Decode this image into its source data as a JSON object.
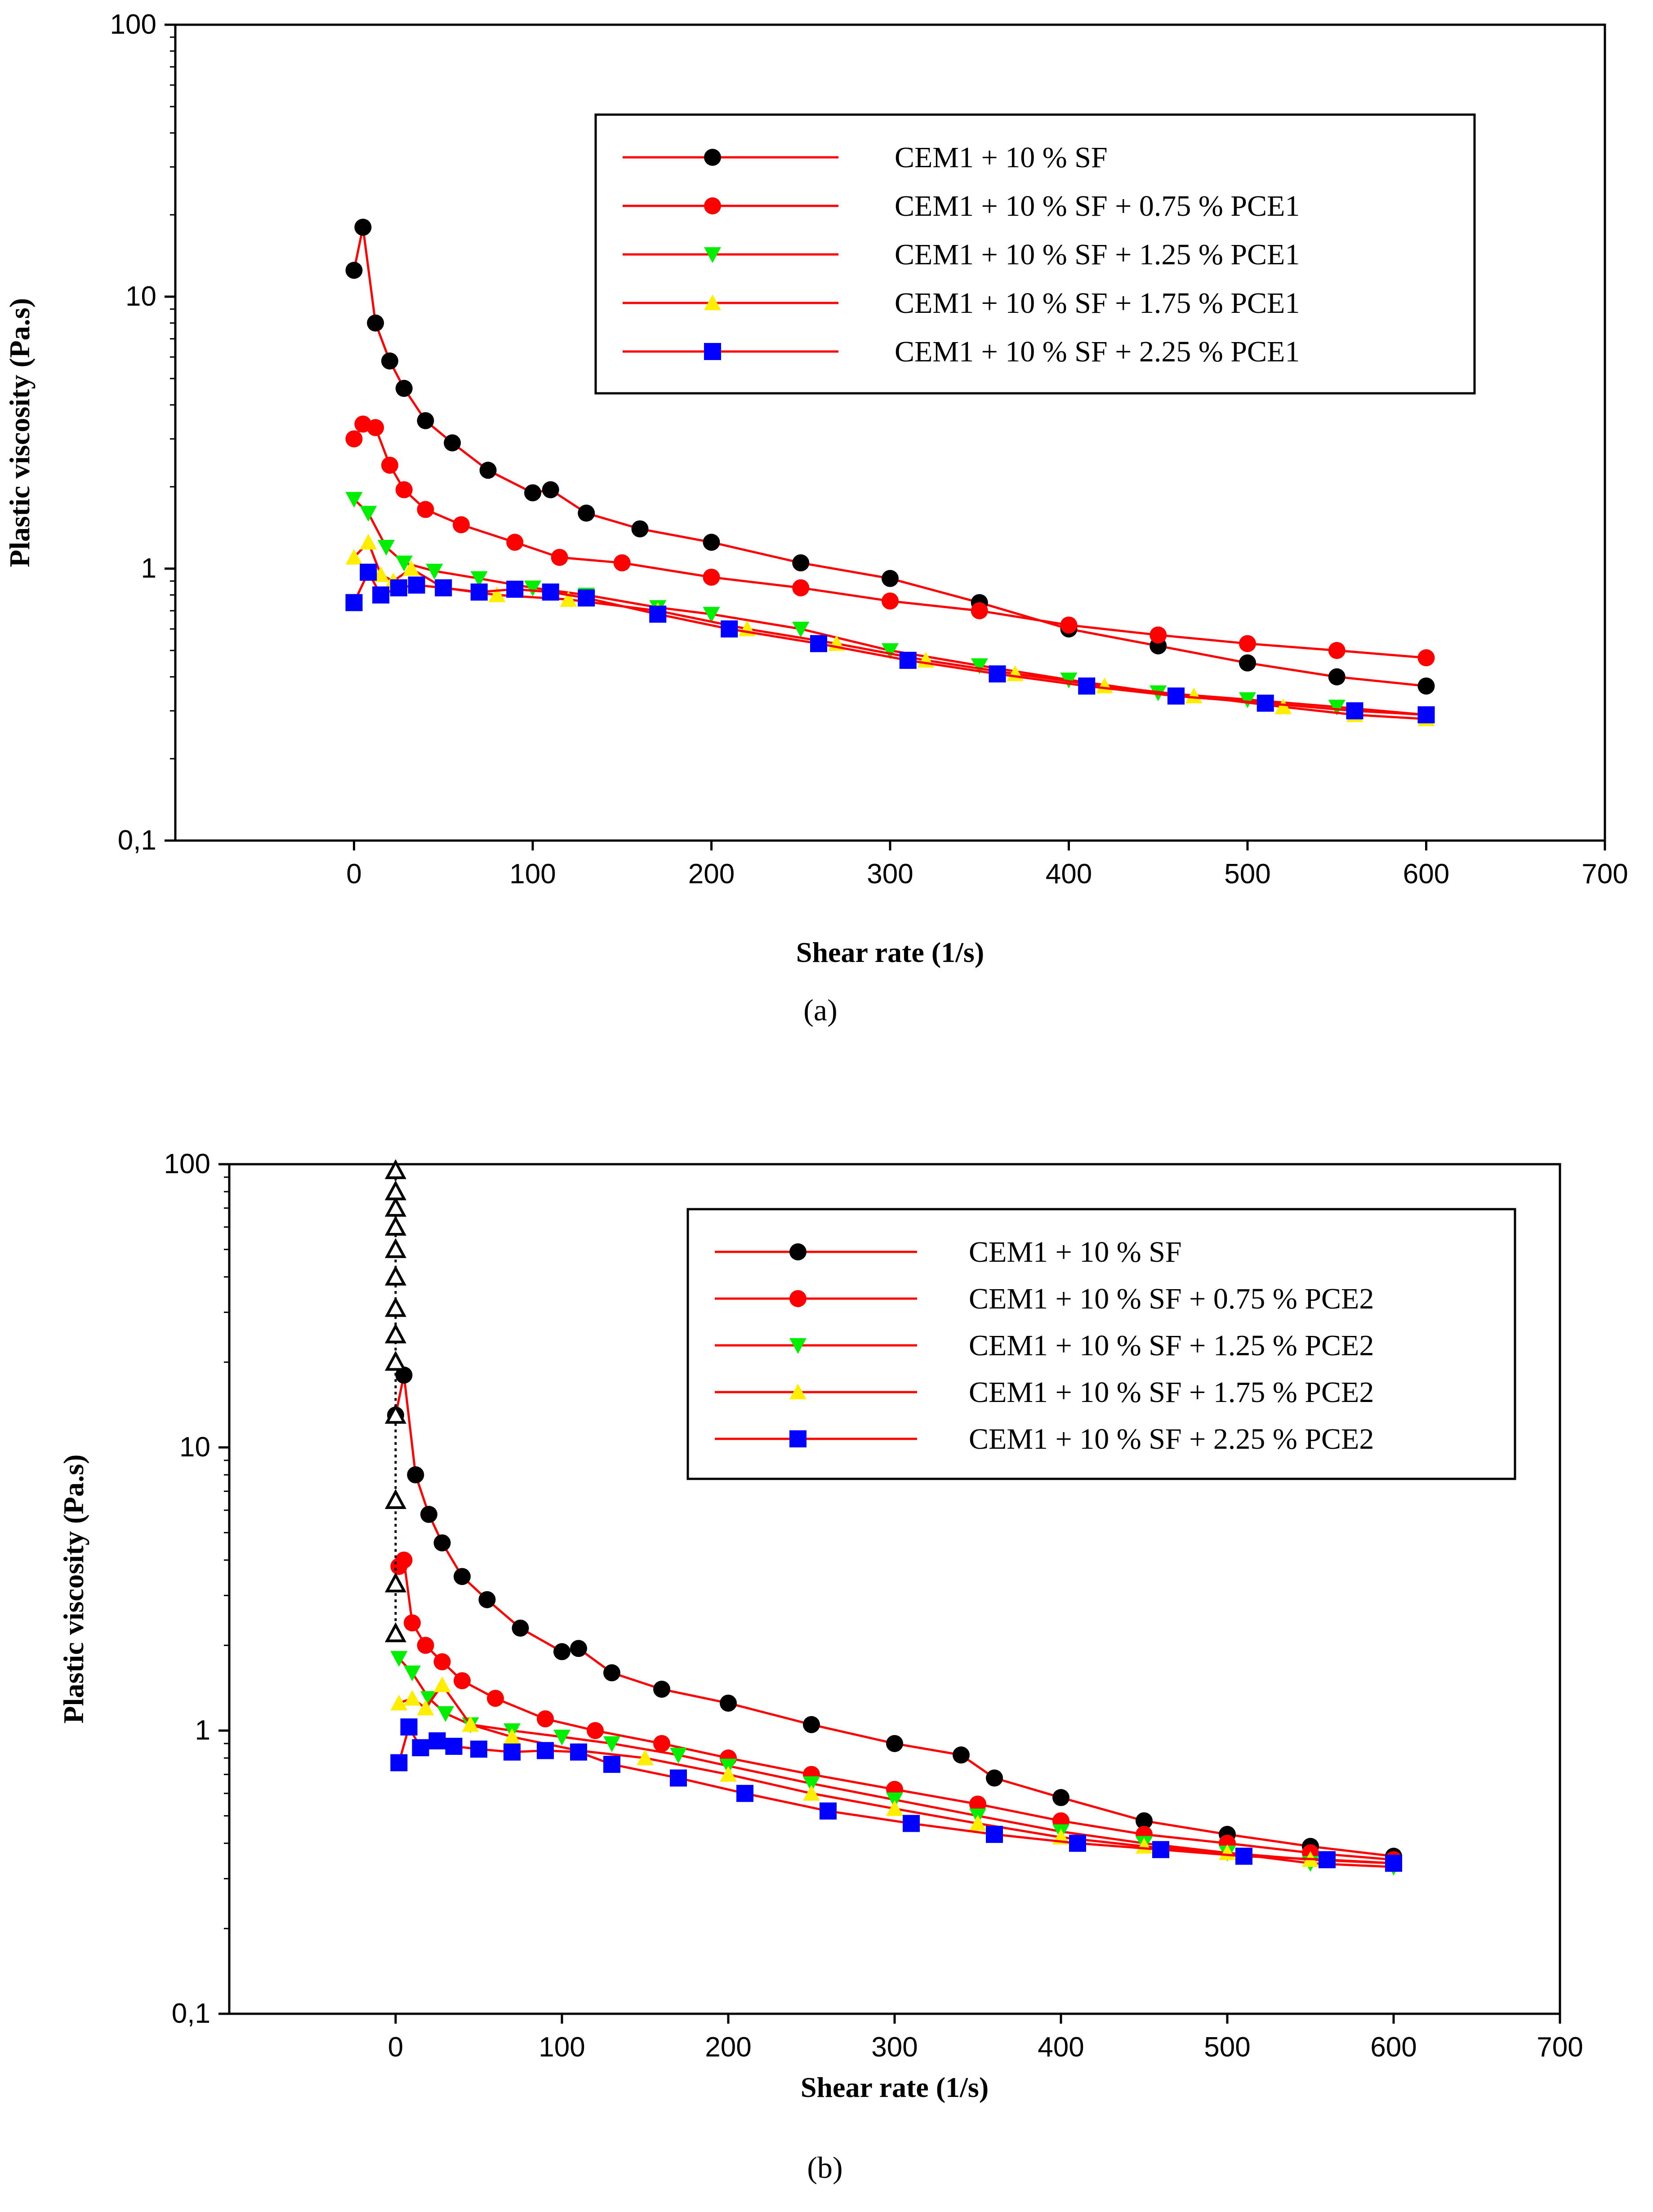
{
  "chart_data": [
    {
      "type": "line",
      "panel_label": "(a)",
      "xlabel": "Shear rate (1/s)",
      "ylabel": "Plastic viscosity (Pa.s)",
      "xlim": [
        -100,
        700
      ],
      "ylim": [
        0.1,
        100
      ],
      "yscale": "log",
      "xticks": [
        0,
        100,
        200,
        300,
        400,
        500,
        600,
        700
      ],
      "xtick_labels": [
        "0",
        "100",
        "200",
        "300",
        "400",
        "500",
        "600",
        "700"
      ],
      "yticks": [
        0.1,
        1,
        10,
        100
      ],
      "ytick_labels": [
        "0,1",
        "1",
        "10",
        "100"
      ],
      "legend_position": "top-right",
      "series": [
        {
          "name": "CEM1 + 10 % SF",
          "color": "#000000",
          "marker": "circle",
          "x": [
            0,
            5,
            12,
            20,
            28,
            40,
            55,
            75,
            100,
            110,
            130,
            160,
            200,
            250,
            300,
            350,
            400,
            450,
            500,
            550,
            600
          ],
          "y": [
            12.5,
            18,
            8,
            5.8,
            4.6,
            3.5,
            2.9,
            2.3,
            1.9,
            1.95,
            1.6,
            1.4,
            1.25,
            1.05,
            0.92,
            0.75,
            0.6,
            0.52,
            0.45,
            0.4,
            0.37
          ]
        },
        {
          "name": "CEM1 + 10 % SF + 0.75 % PCE1",
          "color": "#ff0000",
          "marker": "circle",
          "x": [
            0,
            5,
            12,
            20,
            28,
            40,
            60,
            90,
            115,
            150,
            200,
            250,
            300,
            350,
            400,
            450,
            500,
            550,
            600
          ],
          "y": [
            3.0,
            3.4,
            3.3,
            2.4,
            1.95,
            1.65,
            1.45,
            1.25,
            1.1,
            1.05,
            0.93,
            0.85,
            0.76,
            0.7,
            0.62,
            0.57,
            0.53,
            0.5,
            0.47
          ]
        },
        {
          "name": "CEM1 + 10 % SF + 1.25 % PCE1",
          "color": "#00ee00",
          "marker": "triangle-down",
          "x": [
            0,
            8,
            18,
            28,
            45,
            70,
            100,
            130,
            170,
            200,
            250,
            300,
            350,
            400,
            450,
            500,
            550,
            600
          ],
          "y": [
            1.8,
            1.6,
            1.2,
            1.05,
            0.98,
            0.92,
            0.85,
            0.8,
            0.72,
            0.68,
            0.6,
            0.5,
            0.44,
            0.39,
            0.35,
            0.33,
            0.31,
            0.29
          ]
        },
        {
          "name": "CEM1 + 10 % SF + 1.75 % PCE1",
          "color": "#ffee00",
          "marker": "triangle-up",
          "x": [
            0,
            8,
            15,
            22,
            32,
            50,
            80,
            120,
            170,
            220,
            270,
            320,
            370,
            420,
            470,
            520,
            560,
            600
          ],
          "y": [
            1.1,
            1.25,
            0.95,
            0.9,
            1.0,
            0.85,
            0.8,
            0.77,
            0.7,
            0.6,
            0.53,
            0.46,
            0.41,
            0.37,
            0.34,
            0.31,
            0.29,
            0.28
          ]
        },
        {
          "name": "CEM1 + 10 % SF + 2.25 % PCE1",
          "color": "#0000ff",
          "marker": "square",
          "x": [
            0,
            8,
            15,
            25,
            35,
            50,
            70,
            90,
            110,
            130,
            170,
            210,
            260,
            310,
            360,
            410,
            460,
            510,
            560,
            600
          ],
          "y": [
            0.75,
            0.97,
            0.8,
            0.85,
            0.87,
            0.85,
            0.82,
            0.84,
            0.82,
            0.78,
            0.68,
            0.6,
            0.53,
            0.46,
            0.41,
            0.37,
            0.34,
            0.32,
            0.3,
            0.29
          ]
        }
      ]
    },
    {
      "type": "line",
      "panel_label": "(b)",
      "xlabel": "Shear rate (1/s)",
      "ylabel": "Plastic viscosity (Pa.s)",
      "xlim": [
        -100,
        700
      ],
      "ylim": [
        0.1,
        100
      ],
      "yscale": "log",
      "xticks": [
        0,
        100,
        200,
        300,
        400,
        500,
        600,
        700
      ],
      "xtick_labels": [
        "0",
        "100",
        "200",
        "300",
        "400",
        "500",
        "600",
        "700"
      ],
      "yticks": [
        0.1,
        1,
        10,
        100
      ],
      "ytick_labels": [
        "0,1",
        "1",
        "10",
        "100"
      ],
      "legend_position": "top-right",
      "series": [
        {
          "name": "CEM1 + 10 % SF",
          "color": "#000000",
          "marker": "circle",
          "x": [
            0,
            5,
            12,
            20,
            28,
            40,
            55,
            75,
            100,
            110,
            130,
            160,
            200,
            250,
            300,
            340,
            360,
            400,
            450,
            500,
            550,
            600
          ],
          "y": [
            13,
            18,
            8,
            5.8,
            4.6,
            3.5,
            2.9,
            2.3,
            1.9,
            1.95,
            1.6,
            1.4,
            1.25,
            1.05,
            0.9,
            0.82,
            0.68,
            0.58,
            0.48,
            0.43,
            0.39,
            0.36
          ]
        },
        {
          "name": "CEM1 + 10 % SF + 0.75 % PCE2",
          "color": "#ff0000",
          "marker": "circle",
          "x": [
            2,
            5,
            10,
            18,
            28,
            40,
            60,
            90,
            120,
            160,
            200,
            250,
            300,
            350,
            400,
            450,
            500,
            550,
            600
          ],
          "y": [
            3.8,
            4.0,
            2.4,
            2.0,
            1.75,
            1.5,
            1.3,
            1.1,
            1.0,
            0.9,
            0.8,
            0.7,
            0.62,
            0.55,
            0.48,
            0.43,
            0.4,
            0.37,
            0.35
          ]
        },
        {
          "name": "CEM1 + 10 % SF + 1.25 % PCE2",
          "color": "#00ee00",
          "marker": "triangle-down",
          "x": [
            2,
            10,
            20,
            30,
            45,
            70,
            100,
            130,
            170,
            200,
            250,
            300,
            350,
            400,
            450,
            500,
            550,
            600
          ],
          "y": [
            1.8,
            1.6,
            1.3,
            1.15,
            1.05,
            1.0,
            0.95,
            0.9,
            0.82,
            0.75,
            0.65,
            0.57,
            0.5,
            0.44,
            0.4,
            0.37,
            0.34,
            0.33
          ]
        },
        {
          "name": "CEM1 + 10 % SF + 1.75 % PCE2",
          "color": "#ffee00",
          "marker": "triangle-up",
          "x": [
            2,
            10,
            18,
            28,
            45,
            70,
            110,
            150,
            200,
            250,
            300,
            350,
            400,
            450,
            500,
            550,
            600
          ],
          "y": [
            1.25,
            1.3,
            1.2,
            1.45,
            1.05,
            0.95,
            0.85,
            0.8,
            0.7,
            0.6,
            0.53,
            0.47,
            0.42,
            0.39,
            0.37,
            0.35,
            0.34
          ]
        },
        {
          "name": "CEM1 + 10 % SF + 2.25 % PCE2",
          "color": "#0000ff",
          "marker": "square",
          "x": [
            2,
            8,
            15,
            25,
            35,
            50,
            70,
            90,
            110,
            130,
            170,
            210,
            260,
            310,
            360,
            410,
            460,
            510,
            560,
            600
          ],
          "y": [
            0.77,
            1.03,
            0.87,
            0.92,
            0.88,
            0.86,
            0.84,
            0.85,
            0.84,
            0.76,
            0.68,
            0.6,
            0.52,
            0.47,
            0.43,
            0.4,
            0.38,
            0.36,
            0.35,
            0.34
          ]
        },
        {
          "name": "",
          "color": "#000000",
          "marker": "triangle-up-open",
          "x": [
            0,
            0,
            0,
            0,
            0,
            0,
            0,
            0,
            0,
            0,
            0,
            0,
            0
          ],
          "y": [
            2.2,
            3.3,
            6.5,
            13,
            20,
            25,
            31,
            40,
            50,
            60,
            70,
            80,
            95
          ]
        }
      ]
    }
  ]
}
